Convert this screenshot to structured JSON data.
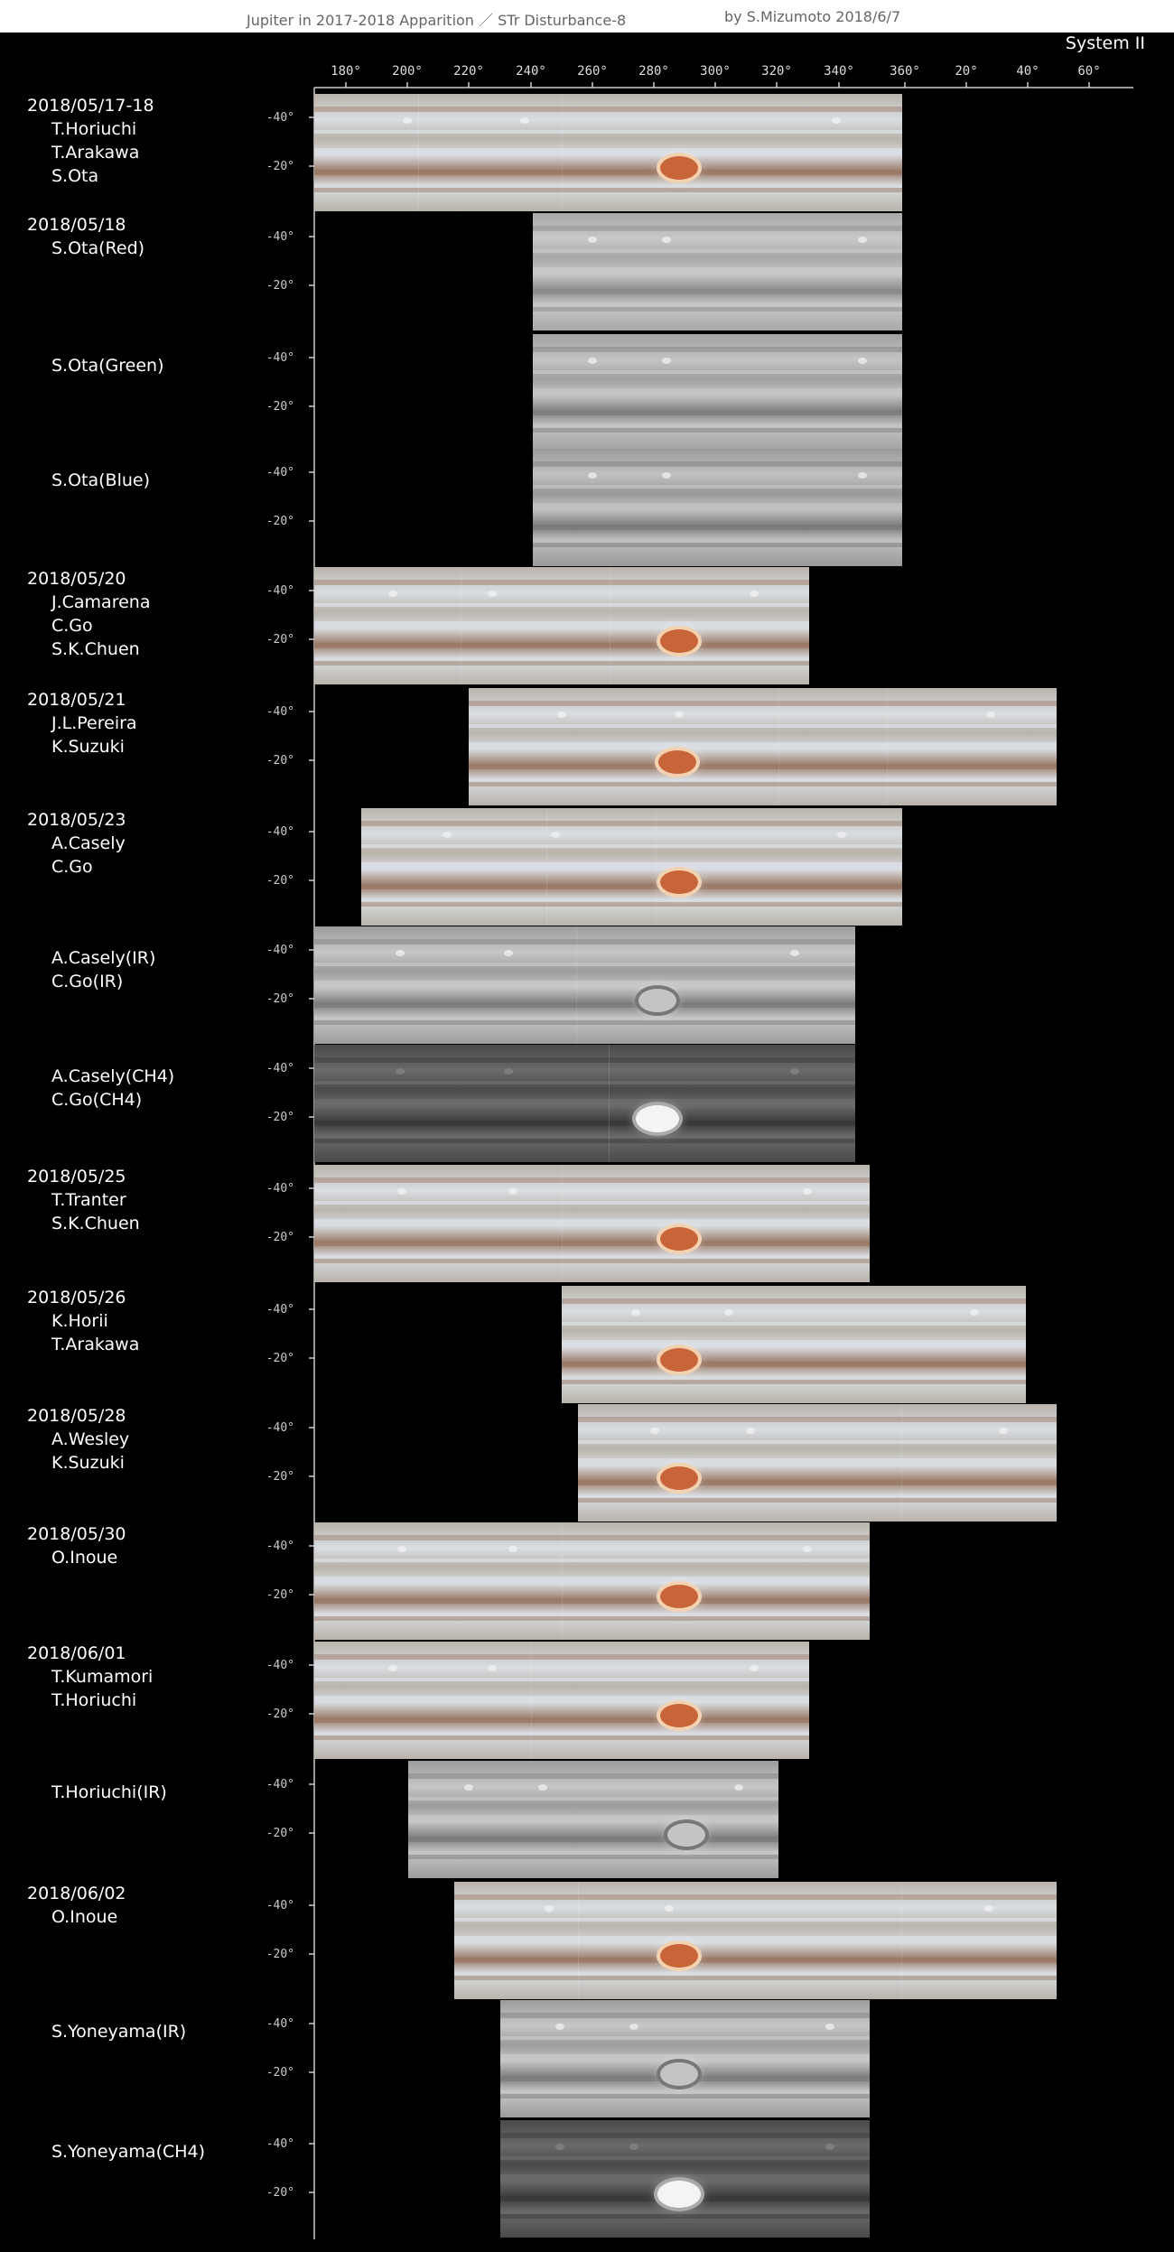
{
  "title": {
    "main": "Jupiter in 2017-2018 Apparition ／ STr Disturbance-8",
    "author": "by S.Mizumoto  2018/6/7"
  },
  "system_label": "System II",
  "axis": {
    "longitude_ticks": [
      "180°",
      "200°",
      "220°",
      "240°",
      "260°",
      "280°",
      "300°",
      "320°",
      "340°",
      "360°",
      "20°",
      "40°",
      "60°"
    ],
    "latitude_ticks": [
      "-40°",
      "-20°"
    ]
  },
  "rows": [
    {
      "date": "2018/05/17-18",
      "observers": [
        "T.Horiuchi",
        "T.Arakawa",
        "S.Ota"
      ],
      "filter": "color"
    },
    {
      "date": "2018/05/18",
      "observers": [
        "S.Ota(Red)"
      ],
      "filter": "red"
    },
    {
      "date": "",
      "observers": [
        "S.Ota(Green)"
      ],
      "filter": "green"
    },
    {
      "date": "",
      "observers": [
        "S.Ota(Blue)"
      ],
      "filter": "blue"
    },
    {
      "date": "2018/05/20",
      "observers": [
        "J.Camarena",
        "C.Go",
        "S.K.Chuen"
      ],
      "filter": "color"
    },
    {
      "date": "2018/05/21",
      "observers": [
        "J.L.Pereira",
        "K.Suzuki"
      ],
      "filter": "color"
    },
    {
      "date": "2018/05/23",
      "observers": [
        "A.Casely",
        "C.Go"
      ],
      "filter": "color"
    },
    {
      "date": "",
      "observers": [
        "A.Casely(IR)",
        "C.Go(IR)"
      ],
      "filter": "ir"
    },
    {
      "date": "",
      "observers": [
        "A.Casely(CH4)",
        "C.Go(CH4)"
      ],
      "filter": "ch4"
    },
    {
      "date": "2018/05/25",
      "observers": [
        "T.Tranter",
        "S.K.Chuen"
      ],
      "filter": "color"
    },
    {
      "date": "2018/05/26",
      "observers": [
        "K.Horii",
        "T.Arakawa"
      ],
      "filter": "color"
    },
    {
      "date": "2018/05/28",
      "observers": [
        "A.Wesley",
        "K.Suzuki"
      ],
      "filter": "color"
    },
    {
      "date": "2018/05/30",
      "observers": [
        "O.Inoue"
      ],
      "filter": "color"
    },
    {
      "date": "2018/06/01",
      "observers": [
        "T.Kumamori",
        "T.Horiuchi"
      ],
      "filter": "color"
    },
    {
      "date": "",
      "observers": [
        "T.Horiuchi(IR)"
      ],
      "filter": "ir"
    },
    {
      "date": "2018/06/02",
      "observers": [
        "O.Inoue"
      ],
      "filter": "color"
    },
    {
      "date": "",
      "observers": [
        "S.Yoneyama(IR)"
      ],
      "filter": "ir"
    },
    {
      "date": "",
      "observers": [
        "S.Yoneyama(CH4)"
      ],
      "filter": "ch4"
    }
  ],
  "colors": {
    "background": "#000000",
    "grs": "#c8643a",
    "belt": "#9a7a66"
  }
}
